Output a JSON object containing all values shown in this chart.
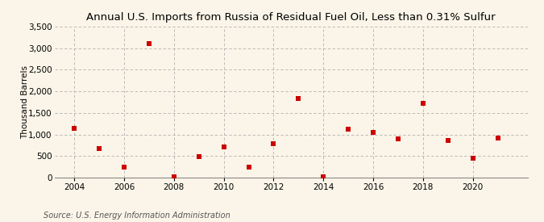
{
  "title": "Annual U.S. Imports from Russia of Residual Fuel Oil, Less than 0.31% Sulfur",
  "ylabel": "Thousand Barrels",
  "source_text": "Source: U.S. Energy Information Administration",
  "years": [
    2004,
    2005,
    2006,
    2007,
    2008,
    2009,
    2010,
    2011,
    2012,
    2013,
    2014,
    2015,
    2016,
    2017,
    2018,
    2019,
    2020,
    2021
  ],
  "values": [
    1150,
    680,
    250,
    3100,
    20,
    480,
    710,
    240,
    790,
    1840,
    20,
    1120,
    1040,
    900,
    1730,
    860,
    440,
    910
  ],
  "marker_color": "#cc0000",
  "marker": "s",
  "marker_size": 4,
  "ylim": [
    0,
    3500
  ],
  "yticks": [
    0,
    500,
    1000,
    1500,
    2000,
    2500,
    3000,
    3500
  ],
  "xlim": [
    2003.2,
    2022.2
  ],
  "xticks": [
    2004,
    2006,
    2008,
    2010,
    2012,
    2014,
    2016,
    2018,
    2020
  ],
  "background_color": "#faf5e8",
  "grid_color": "#b0b0b0",
  "title_fontsize": 9.5,
  "axis_label_fontsize": 7.5,
  "tick_fontsize": 7.5,
  "source_fontsize": 7
}
